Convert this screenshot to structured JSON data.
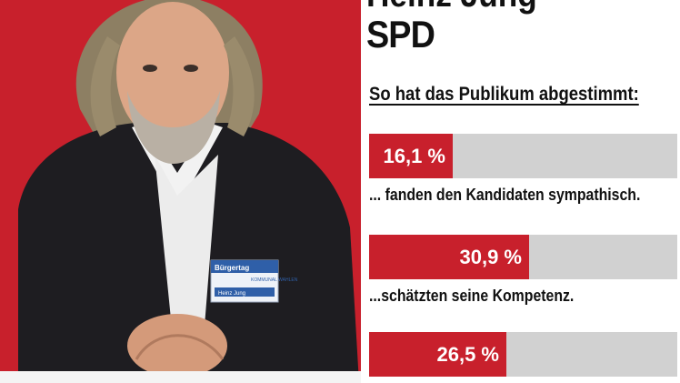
{
  "header": {
    "name": "Heinz Jung",
    "party": "SPD"
  },
  "badge": {
    "logo_text": "Bürgertag",
    "org_text": "KOMMUNAL WAHLEN",
    "name_text": "Heinz Jung"
  },
  "colors": {
    "accent_red": "#c8202c",
    "bar_gray": "#d1d1d1",
    "text_dark": "#111111"
  },
  "chart_data": {
    "type": "bar",
    "orientation": "horizontal",
    "title": "So hat das Publikum abgestimmt:",
    "xlim": [
      0,
      100
    ],
    "unit": "%",
    "bars": [
      {
        "value": 16.1,
        "value_label": "16,1 %",
        "caption": "... fanden den Kandidaten sympathisch."
      },
      {
        "value": 30.9,
        "value_label": "30,9 %",
        "caption": "...schätzten seine Kompetenz."
      },
      {
        "value": 26.5,
        "value_label": "26,5 %",
        "caption": ""
      }
    ]
  }
}
